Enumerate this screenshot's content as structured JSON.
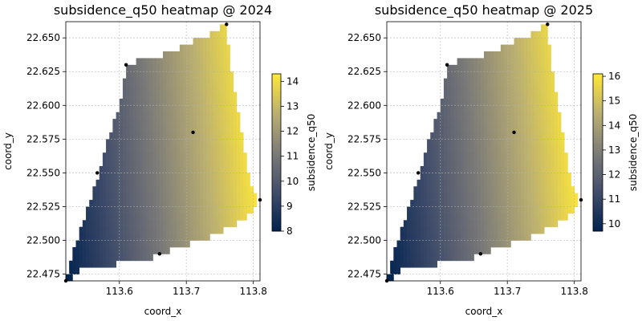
{
  "chart_data": [
    {
      "type": "heatmap",
      "title": "subsidence_q50 heatmap @ 2024",
      "xlabel": "coord_x",
      "ylabel": "coord_y",
      "xlim": [
        113.52,
        113.81
      ],
      "ylim": [
        22.47,
        22.662
      ],
      "xticks": [
        "113.6",
        "113.7",
        "113.8"
      ],
      "yticks": [
        "22.475",
        "22.500",
        "22.525",
        "22.550",
        "22.575",
        "22.600",
        "22.625",
        "22.650"
      ],
      "grid": true,
      "colormap": "cividis",
      "colorbar": {
        "label": "subsidence_q50",
        "range": [
          8.0,
          14.3
        ],
        "ticks": [
          "8",
          "9",
          "10",
          "11",
          "12",
          "13",
          "14"
        ]
      },
      "value_gradient": {
        "low_corner": [
          113.52,
          22.47
        ],
        "low_value": 8.0,
        "high_corner": [
          113.81,
          22.53
        ],
        "high_value": 14.3
      },
      "region_polygon": [
        [
          113.52,
          22.47
        ],
        [
          113.535,
          22.475
        ],
        [
          113.548,
          22.48
        ],
        [
          113.562,
          22.481
        ],
        [
          113.585,
          22.482
        ],
        [
          113.62,
          22.484
        ],
        [
          113.645,
          22.487
        ],
        [
          113.66,
          22.49
        ],
        [
          113.68,
          22.494
        ],
        [
          113.71,
          22.498
        ],
        [
          113.73,
          22.501
        ],
        [
          113.75,
          22.507
        ],
        [
          113.765,
          22.51
        ],
        [
          113.78,
          22.515
        ],
        [
          113.795,
          22.52
        ],
        [
          113.81,
          22.53
        ],
        [
          113.795,
          22.54
        ],
        [
          113.79,
          22.555
        ],
        [
          113.785,
          22.57
        ],
        [
          113.78,
          22.585
        ],
        [
          113.775,
          22.6
        ],
        [
          113.77,
          22.615
        ],
        [
          113.765,
          22.63
        ],
        [
          113.762,
          22.645
        ],
        [
          113.76,
          22.66
        ],
        [
          113.735,
          22.652
        ],
        [
          113.7,
          22.645
        ],
        [
          113.67,
          22.638
        ],
        [
          113.64,
          22.635
        ],
        [
          113.62,
          22.632
        ],
        [
          113.61,
          22.63
        ],
        [
          113.605,
          22.615
        ],
        [
          113.6,
          22.6
        ],
        [
          113.59,
          22.585
        ],
        [
          113.58,
          22.57
        ],
        [
          113.57,
          22.55
        ],
        [
          113.56,
          22.535
        ],
        [
          113.55,
          22.52
        ],
        [
          113.54,
          22.505
        ],
        [
          113.53,
          22.49
        ]
      ],
      "points": [
        [
          113.52,
          22.47
        ],
        [
          113.66,
          22.49
        ],
        [
          113.81,
          22.53
        ],
        [
          113.567,
          22.55
        ],
        [
          113.71,
          22.58
        ],
        [
          113.61,
          22.63
        ],
        [
          113.76,
          22.66
        ]
      ]
    },
    {
      "type": "heatmap",
      "title": "subsidence_q50 heatmap @ 2025",
      "xlabel": "coord_x",
      "ylabel": "coord_y",
      "xlim": [
        113.52,
        113.81
      ],
      "ylim": [
        22.47,
        22.662
      ],
      "xticks": [
        "113.6",
        "113.7",
        "113.8"
      ],
      "yticks": [
        "22.475",
        "22.500",
        "22.525",
        "22.550",
        "22.575",
        "22.600",
        "22.625",
        "22.650"
      ],
      "grid": true,
      "colormap": "cividis",
      "colorbar": {
        "label": "subsidence_q50",
        "range": [
          9.7,
          16.1
        ],
        "ticks": [
          "10",
          "11",
          "12",
          "13",
          "14",
          "15",
          "16"
        ]
      },
      "value_gradient": {
        "low_corner": [
          113.52,
          22.47
        ],
        "low_value": 9.7,
        "high_corner": [
          113.81,
          22.53
        ],
        "high_value": 16.1
      },
      "region_polygon": [
        [
          113.52,
          22.47
        ],
        [
          113.535,
          22.475
        ],
        [
          113.548,
          22.48
        ],
        [
          113.562,
          22.481
        ],
        [
          113.585,
          22.482
        ],
        [
          113.62,
          22.484
        ],
        [
          113.645,
          22.487
        ],
        [
          113.66,
          22.49
        ],
        [
          113.68,
          22.494
        ],
        [
          113.71,
          22.498
        ],
        [
          113.73,
          22.501
        ],
        [
          113.75,
          22.507
        ],
        [
          113.765,
          22.51
        ],
        [
          113.78,
          22.515
        ],
        [
          113.795,
          22.52
        ],
        [
          113.81,
          22.53
        ],
        [
          113.795,
          22.54
        ],
        [
          113.79,
          22.555
        ],
        [
          113.785,
          22.57
        ],
        [
          113.78,
          22.585
        ],
        [
          113.775,
          22.6
        ],
        [
          113.77,
          22.615
        ],
        [
          113.765,
          22.63
        ],
        [
          113.762,
          22.645
        ],
        [
          113.76,
          22.66
        ],
        [
          113.735,
          22.652
        ],
        [
          113.7,
          22.645
        ],
        [
          113.67,
          22.638
        ],
        [
          113.64,
          22.635
        ],
        [
          113.62,
          22.632
        ],
        [
          113.61,
          22.63
        ],
        [
          113.605,
          22.615
        ],
        [
          113.6,
          22.6
        ],
        [
          113.59,
          22.585
        ],
        [
          113.58,
          22.57
        ],
        [
          113.57,
          22.55
        ],
        [
          113.56,
          22.535
        ],
        [
          113.55,
          22.52
        ],
        [
          113.54,
          22.505
        ],
        [
          113.53,
          22.49
        ]
      ],
      "points": [
        [
          113.52,
          22.47
        ],
        [
          113.66,
          22.49
        ],
        [
          113.81,
          22.53
        ],
        [
          113.567,
          22.55
        ],
        [
          113.71,
          22.58
        ],
        [
          113.61,
          22.63
        ],
        [
          113.76,
          22.66
        ]
      ]
    }
  ]
}
